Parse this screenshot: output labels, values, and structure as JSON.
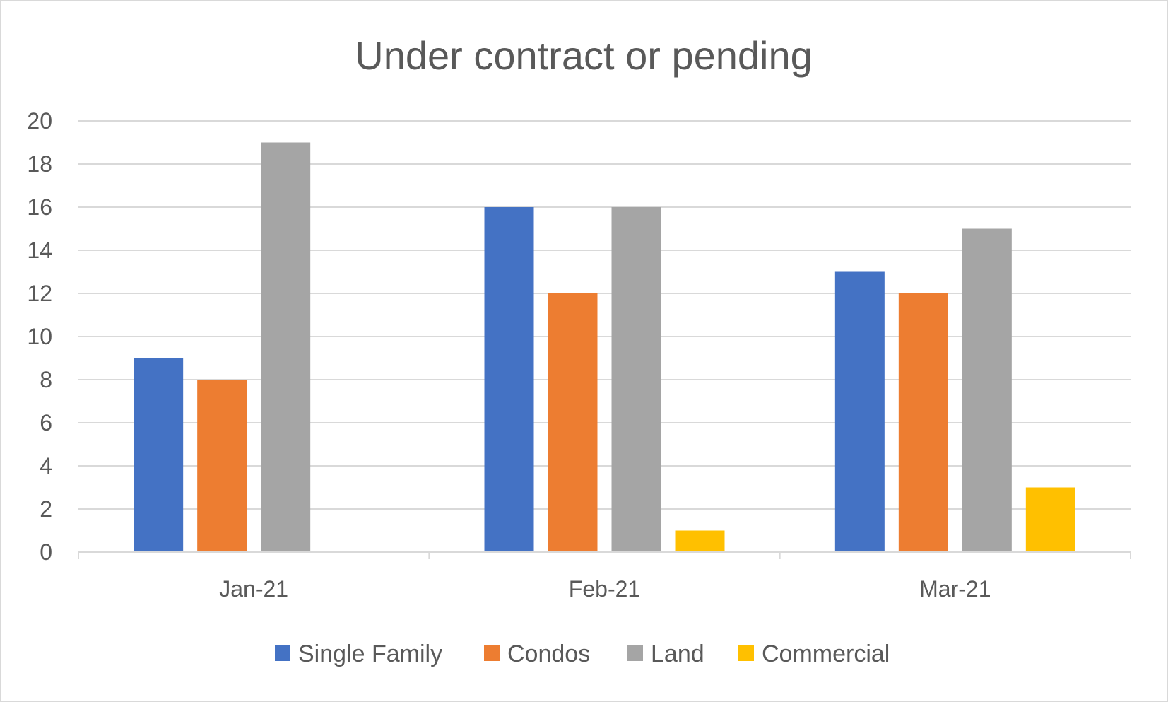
{
  "chart_data": {
    "type": "bar",
    "title": "Under contract or pending",
    "xlabel": "",
    "ylabel": "",
    "categories": [
      "Jan-21",
      "Feb-21",
      "Mar-21"
    ],
    "series": [
      {
        "name": "Single Family",
        "color": "#4472C4",
        "values": [
          9,
          16,
          13
        ]
      },
      {
        "name": "Condos",
        "color": "#ED7D31",
        "values": [
          8,
          12,
          12
        ]
      },
      {
        "name": "Land",
        "color": "#A5A5A5",
        "values": [
          19,
          16,
          15
        ]
      },
      {
        "name": "Commercial",
        "color": "#FFC000",
        "values": [
          0,
          1,
          3
        ]
      }
    ],
    "ylim": [
      0,
      20
    ],
    "yticks": [
      "0",
      "2",
      "4",
      "6",
      "8",
      "10",
      "12",
      "14",
      "16",
      "18",
      "20"
    ],
    "grid": true,
    "legend": "bottom"
  }
}
